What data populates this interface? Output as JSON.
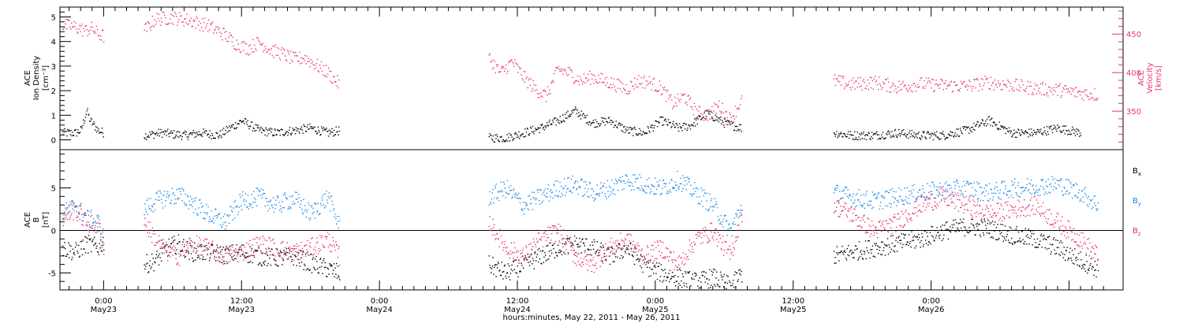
{
  "chart_data": [
    {
      "type": "scatter",
      "panel": "top",
      "ylabel": [
        "ACE",
        "Ion Density",
        "[cm⁻³]"
      ],
      "ylim": [
        -0.4,
        5.4
      ],
      "yticks": [
        "0",
        "1",
        "2",
        "3",
        "4",
        "5"
      ],
      "y2label": [
        "ACE",
        "Velocity",
        "[km/s]"
      ],
      "y2lim": [
        300,
        485
      ],
      "y2ticks": [
        "350",
        "400",
        "450"
      ],
      "series": [
        {
          "name": "Ion Density",
          "axis": "left",
          "color": "#000000",
          "segments": [
            {
              "t": [
                -3.6,
                -2.5,
                -2.0,
                -1.5,
                -1.2,
                -0.5,
                0
              ],
              "y": [
                0.3,
                0.3,
                0.4,
                1.2,
                0.8,
                0.4,
                0.3
              ]
            },
            {
              "t": [
                3.5,
                5,
                7,
                8.5,
                10,
                11,
                12,
                13.5,
                15,
                16.5,
                18,
                19.5,
                20.5
              ],
              "y": [
                0.2,
                0.3,
                0.2,
                0.3,
                0.2,
                0.5,
                0.8,
                0.4,
                0.3,
                0.4,
                0.5,
                0.3,
                0.4
              ]
            },
            {
              "t": [
                33.5,
                35,
                36.5,
                38,
                39.5,
                41,
                42.5,
                44,
                45.5,
                47,
                48.5,
                50,
                51,
                52.5,
                54,
                55.5
              ],
              "y": [
                0.1,
                0.1,
                0.3,
                0.5,
                0.8,
                1.2,
                0.7,
                0.8,
                0.4,
                0.3,
                0.8,
                0.5,
                0.6,
                1.1,
                0.7,
                0.5
              ]
            },
            {
              "t": [
                63.5,
                65,
                67,
                69,
                71,
                73,
                75,
                77,
                79,
                81,
                83,
                85
              ],
              "y": [
                0.3,
                0.2,
                0.2,
                0.3,
                0.2,
                0.2,
                0.4,
                0.8,
                0.3,
                0.3,
                0.5,
                0.3
              ]
            }
          ]
        },
        {
          "name": "Velocity",
          "axis": "right",
          "color": "#e8336a",
          "segments": [
            {
              "t": [
                -3.6,
                -2.5,
                -1.6,
                -1.0,
                -0.5,
                0
              ],
              "y": [
                462,
                460,
                455,
                458,
                450,
                448
              ]
            },
            {
              "t": [
                3.5,
                4.5,
                6,
                7.5,
                9,
                10.5,
                11.5,
                12.5,
                13.5,
                14.5,
                15.5,
                16.5,
                17.5,
                18.5,
                19.5,
                20.5
              ],
              "y": [
                455,
                470,
                472,
                468,
                462,
                450,
                438,
                432,
                440,
                430,
                425,
                418,
                420,
                410,
                400,
                385
              ]
            },
            {
              "t": [
                33.5,
                34.5,
                35.5,
                36.5,
                37.5,
                38.5,
                39.5,
                40.5,
                41.5,
                42.5,
                43.5,
                44.5,
                45.5,
                46.5,
                47.5,
                48.5,
                49.5,
                50.5,
                51.5,
                52.5,
                53.5,
                54.5,
                55.5
              ],
              "y": [
                420,
                400,
                415,
                395,
                380,
                370,
                405,
                400,
                390,
                395,
                390,
                385,
                380,
                390,
                388,
                380,
                360,
                370,
                350,
                345,
                358,
                340,
                365
              ]
            },
            {
              "t": [
                63.5,
                65,
                67,
                69,
                71,
                73,
                75,
                77,
                79,
                81,
                83,
                85,
                86.5
              ],
              "y": [
                390,
                385,
                388,
                382,
                386,
                384,
                383,
                388,
                384,
                380,
                378,
                374,
                372
              ]
            }
          ]
        }
      ]
    },
    {
      "type": "scatter",
      "panel": "bottom",
      "ylabel": [
        "ACE",
        "B",
        "[nT]"
      ],
      "ylim": [
        -7,
        9.5
      ],
      "yticks": [
        "-5",
        "0",
        "5"
      ],
      "reference_line": 0,
      "series": [
        {
          "name": "Bx",
          "color": "#000000",
          "segments": [
            {
              "t": [
                -3.6,
                -2.5,
                -1.5,
                -0.5,
                0
              ],
              "y": [
                -2,
                -2.5,
                -1.5,
                -2,
                -1.2
              ]
            },
            {
              "t": [
                3.5,
                4.5,
                5.5,
                6.5,
                7.5,
                9,
                10.5,
                12,
                13.5,
                15,
                16.5,
                18,
                19.5,
                20.5
              ],
              "y": [
                -4,
                -3.5,
                -2,
                -1.5,
                -2.5,
                -2.5,
                -2.8,
                -2.5,
                -3,
                -3.2,
                -3,
                -3.8,
                -4.5,
                -5
              ]
            },
            {
              "t": [
                33.5,
                35,
                36.5,
                38,
                39.5,
                41,
                42.5,
                44,
                45.5,
                47,
                48.5,
                50,
                51.5,
                53,
                54.5,
                55.5
              ],
              "y": [
                -4,
                -5,
                -4,
                -3,
                -2,
                -1.5,
                -2,
                -3,
                -2,
                -4,
                -5,
                -5.5,
                -6,
                -5.5,
                -6.5,
                -5
              ]
            },
            {
              "t": [
                63.5,
                65,
                67,
                69,
                71,
                73,
                75,
                77,
                79,
                81,
                83,
                85,
                86.5
              ],
              "y": [
                -3,
                -2.5,
                -2,
                -1.5,
                -1,
                0,
                0.5,
                0.3,
                -0.5,
                -1,
                -2,
                -3.5,
                -4.5
              ]
            }
          ]
        },
        {
          "name": "By",
          "color": "#1e88e5",
          "segments": [
            {
              "t": [
                -3.6,
                -2.5,
                -1.5,
                -0.5,
                0
              ],
              "y": [
                2,
                3,
                1.5,
                1,
                -1
              ]
            },
            {
              "t": [
                3.5,
                4.5,
                5.5,
                6.5,
                7.5,
                9,
                10.5,
                12,
                13.5,
                15,
                16.5,
                18,
                19.5,
                20.5
              ],
              "y": [
                2.5,
                3.5,
                4,
                4.2,
                3.5,
                2,
                1,
                3.5,
                4,
                3,
                3.8,
                2,
                4,
                0.5
              ]
            },
            {
              "t": [
                33.5,
                35,
                36.5,
                38,
                39.5,
                41,
                42.5,
                44,
                45.5,
                47,
                48.5,
                50,
                51.5,
                53,
                54.5,
                55.5
              ],
              "y": [
                4,
                5,
                3,
                4,
                5,
                5.5,
                4.5,
                5,
                6,
                5.5,
                5,
                6,
                4.5,
                3,
                0,
                3
              ]
            },
            {
              "t": [
                63.5,
                65,
                67,
                69,
                71,
                73,
                75,
                77,
                79,
                81,
                83,
                85,
                86.5
              ],
              "y": [
                4.5,
                4,
                3.5,
                4,
                4.5,
                4.8,
                5,
                4.5,
                5,
                5.2,
                5.5,
                4.5,
                3
              ]
            }
          ]
        },
        {
          "name": "Bz",
          "color": "#e8336a",
          "segments": [
            {
              "t": [
                -3.6,
                -2.5,
                -1.5,
                -0.5,
                0
              ],
              "y": [
                1.5,
                2.5,
                1,
                0.5,
                -2
              ]
            },
            {
              "t": [
                3.5,
                4.5,
                5.5,
                6.5,
                7.5,
                9,
                10.5,
                12,
                13.5,
                15,
                16.5,
                18,
                19.5,
                20.5
              ],
              "y": [
                1,
                -1,
                -2.5,
                -3,
                -1.5,
                -2,
                -3,
                -2.5,
                -1.5,
                -2,
                -2.5,
                -2,
                -1,
                -3
              ]
            },
            {
              "t": [
                33.5,
                35,
                36.5,
                38,
                39.5,
                41,
                42.5,
                44,
                45.5,
                47,
                48.5,
                50,
                51.5,
                53,
                54.5,
                55.5
              ],
              "y": [
                1,
                -2,
                -3,
                -1,
                0,
                -3,
                -4,
                -2,
                -1,
                -3,
                -2,
                -4,
                -1,
                0,
                -3,
                2
              ]
            },
            {
              "t": [
                63.5,
                65,
                67,
                69,
                71,
                73,
                75,
                77,
                79,
                81,
                83,
                85,
                86.5
              ],
              "y": [
                3,
                2,
                0,
                1,
                3,
                4,
                3,
                2,
                2.5,
                3,
                1,
                -1,
                -3
              ]
            }
          ]
        }
      ]
    }
  ],
  "x_axis": {
    "ticks": [
      {
        "t": 0,
        "time": "0:00",
        "day": "May23"
      },
      {
        "t": 12,
        "time": "12:00",
        "day": "May23"
      },
      {
        "t": 24,
        "time": "0:00",
        "day": "May24"
      },
      {
        "t": 36,
        "time": "12:00",
        "day": "May24"
      },
      {
        "t": 48,
        "time": "0:00",
        "day": "May25"
      },
      {
        "t": 60,
        "time": "12:00",
        "day": "May25"
      },
      {
        "t": 72,
        "time": "0:00",
        "day": "May26"
      }
    ]
  },
  "xlabel": "hours:minutes, May 22, 2011 - May 26, 2011",
  "legend": [
    {
      "base": "B",
      "sub": "x",
      "color": "#000000"
    },
    {
      "base": "B",
      "sub": "y",
      "color": "#1e88e5"
    },
    {
      "base": "B",
      "sub": "z",
      "color": "#e8336a"
    }
  ]
}
